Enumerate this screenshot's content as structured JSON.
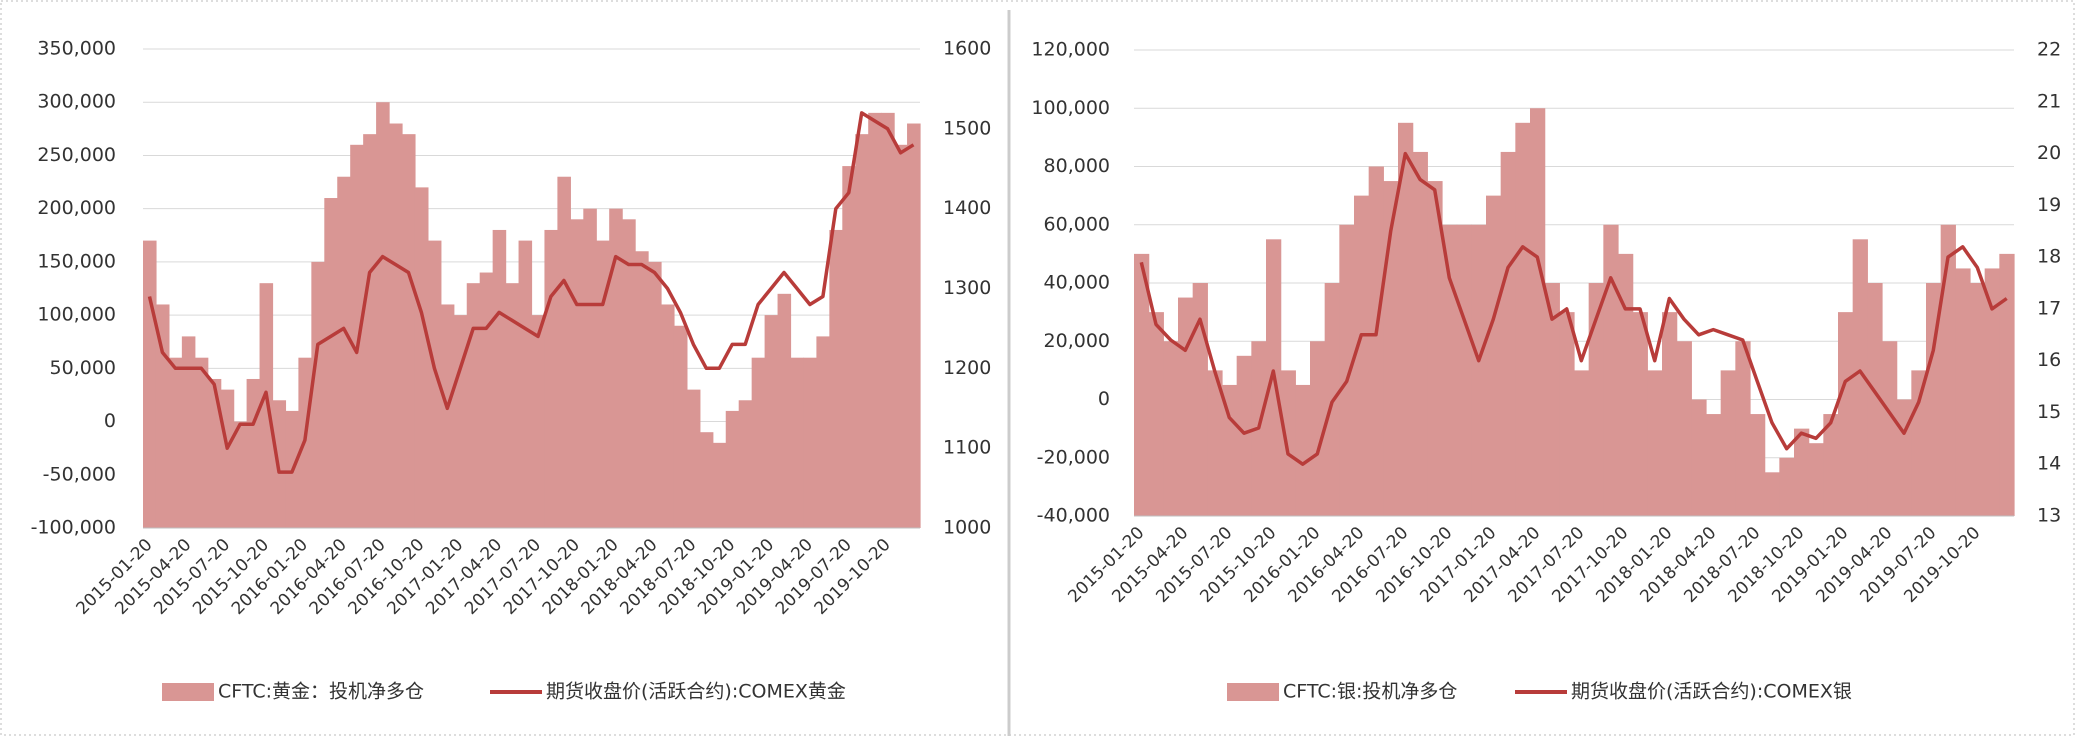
{
  "chart_data": [
    {
      "type": "combo",
      "categories": [
        "2015-01-20",
        null,
        null,
        "2015-04-20",
        null,
        null,
        "2015-07-20",
        null,
        null,
        "2015-10-20",
        null,
        null,
        "2016-01-20",
        null,
        null,
        "2016-04-20",
        null,
        null,
        "2016-07-20",
        null,
        null,
        "2016-10-20",
        null,
        null,
        "2017-01-20",
        null,
        null,
        "2017-04-20",
        null,
        null,
        "2017-07-20",
        null,
        null,
        "2017-10-20",
        null,
        null,
        "2018-01-20",
        null,
        null,
        "2018-04-20",
        null,
        null,
        "2018-07-20",
        null,
        null,
        "2018-10-20",
        null,
        null,
        "2019-01-20",
        null,
        null,
        "2019-04-20",
        null,
        null,
        "2019-07-20",
        null,
        null,
        "2019-10-20",
        null,
        null
      ],
      "series": [
        {
          "name": "CFTC:黄金：投机净多仓",
          "color": "#d99694",
          "type": "bar",
          "values": [
            170000,
            110000,
            60000,
            80000,
            60000,
            40000,
            30000,
            0,
            40000,
            130000,
            20000,
            10000,
            60000,
            150000,
            210000,
            230000,
            260000,
            270000,
            300000,
            280000,
            270000,
            220000,
            170000,
            110000,
            100000,
            130000,
            140000,
            180000,
            130000,
            170000,
            100000,
            180000,
            230000,
            190000,
            200000,
            170000,
            200000,
            190000,
            160000,
            150000,
            110000,
            90000,
            30000,
            -10000,
            -20000,
            10000,
            20000,
            60000,
            100000,
            120000,
            60000,
            60000,
            80000,
            180000,
            240000,
            270000,
            290000,
            290000,
            260000,
            280000
          ]
        },
        {
          "name": "期货收盘价(活跃合约):COMEX黄金",
          "color": "#b83c3a",
          "type": "line",
          "axis": "y2",
          "values": [
            1290,
            1220,
            1200,
            1200,
            1200,
            1180,
            1100,
            1130,
            1130,
            1170,
            1070,
            1070,
            1110,
            1230,
            1240,
            1250,
            1220,
            1320,
            1340,
            1330,
            1320,
            1270,
            1200,
            1150,
            1200,
            1250,
            1250,
            1270,
            1260,
            1250,
            1240,
            1290,
            1310,
            1280,
            1280,
            1280,
            1340,
            1330,
            1330,
            1320,
            1300,
            1270,
            1230,
            1200,
            1200,
            1230,
            1230,
            1280,
            1300,
            1320,
            1300,
            1280,
            1290,
            1400,
            1420,
            1520,
            1510,
            1500,
            1470,
            1480
          ]
        }
      ],
      "ylim": [
        -100000,
        350000
      ],
      "yticks": [
        {
          "value": -100000,
          "label": "-100,000"
        },
        {
          "value": -50000,
          "label": "-50,000"
        },
        0,
        {
          "value": 50000,
          "label": "50,000"
        },
        {
          "value": 100000,
          "label": "100,000"
        },
        {
          "value": 150000,
          "label": "150,000"
        },
        {
          "value": 200000,
          "label": "200,000"
        },
        {
          "value": 250000,
          "label": "250,000"
        },
        {
          "value": 300000,
          "label": "300,000"
        },
        {
          "value": 350000,
          "label": "350,000"
        }
      ],
      "y2lim": [
        1000,
        1600
      ],
      "y2ticks": [
        1000,
        1100,
        1200,
        1300,
        1400,
        1500,
        1600
      ],
      "grid": true,
      "legend": "bottom"
    },
    {
      "type": "combo",
      "categories": [
        "2015-01-20",
        null,
        null,
        "2015-04-20",
        null,
        null,
        "2015-07-20",
        null,
        null,
        "2015-10-20",
        null,
        null,
        "2016-01-20",
        null,
        null,
        "2016-04-20",
        null,
        null,
        "2016-07-20",
        null,
        null,
        "2016-10-20",
        null,
        null,
        "2017-01-20",
        null,
        null,
        "2017-04-20",
        null,
        null,
        "2017-07-20",
        null,
        null,
        "2017-10-20",
        null,
        null,
        "2018-01-20",
        null,
        null,
        "2018-04-20",
        null,
        null,
        "2018-07-20",
        null,
        null,
        "2018-10-20",
        null,
        null,
        "2019-01-20",
        null,
        null,
        "2019-04-20",
        null,
        null,
        "2019-07-20",
        null,
        null,
        "2019-10-20",
        null,
        null
      ],
      "series": [
        {
          "name": "CFTC:银:投机净多仓",
          "color": "#d99694",
          "type": "bar",
          "values": [
            50000,
            30000,
            20000,
            35000,
            40000,
            10000,
            5000,
            15000,
            20000,
            55000,
            10000,
            5000,
            20000,
            40000,
            60000,
            70000,
            80000,
            75000,
            95000,
            85000,
            75000,
            60000,
            60000,
            60000,
            70000,
            85000,
            95000,
            100000,
            40000,
            30000,
            10000,
            40000,
            60000,
            50000,
            30000,
            10000,
            30000,
            20000,
            0,
            -5000,
            10000,
            20000,
            -5000,
            -25000,
            -20000,
            -10000,
            -15000,
            -5000,
            30000,
            55000,
            40000,
            20000,
            0,
            10000,
            40000,
            60000,
            45000,
            40000,
            45000,
            50000
          ]
        },
        {
          "name": "期货收盘价(活跃合约):COMEX银",
          "color": "#b83c3a",
          "type": "line",
          "axis": "y2",
          "values": [
            17.9,
            16.7,
            16.4,
            16.2,
            16.8,
            15.8,
            14.9,
            14.6,
            14.7,
            15.8,
            14.2,
            14.0,
            14.2,
            15.2,
            15.6,
            16.5,
            16.5,
            18.5,
            20.0,
            19.5,
            19.3,
            17.6,
            16.8,
            16.0,
            16.8,
            17.8,
            18.2,
            18.0,
            16.8,
            17.0,
            16.0,
            16.8,
            17.6,
            17.0,
            17.0,
            16.0,
            17.2,
            16.8,
            16.5,
            16.6,
            16.5,
            16.4,
            15.6,
            14.8,
            14.3,
            14.6,
            14.5,
            14.8,
            15.6,
            15.8,
            15.4,
            15.0,
            14.6,
            15.2,
            16.2,
            18.0,
            18.2,
            17.8,
            17.0,
            17.2
          ]
        }
      ],
      "ylim": [
        -40000,
        120000
      ],
      "yticks": [
        {
          "value": -40000,
          "label": "-40,000"
        },
        {
          "value": -20000,
          "label": "-20,000"
        },
        0,
        {
          "value": 20000,
          "label": "20,000"
        },
        {
          "value": 40000,
          "label": "40,000"
        },
        {
          "value": 60000,
          "label": "60,000"
        },
        {
          "value": 80000,
          "label": "80,000"
        },
        {
          "value": 100000,
          "label": "100,000"
        },
        {
          "value": 120000,
          "label": "120,000"
        }
      ],
      "y2lim": [
        13,
        22
      ],
      "y2ticks": [
        13,
        14,
        15,
        16,
        17,
        18,
        19,
        20,
        21,
        22
      ],
      "grid": true,
      "legend": "bottom"
    }
  ]
}
